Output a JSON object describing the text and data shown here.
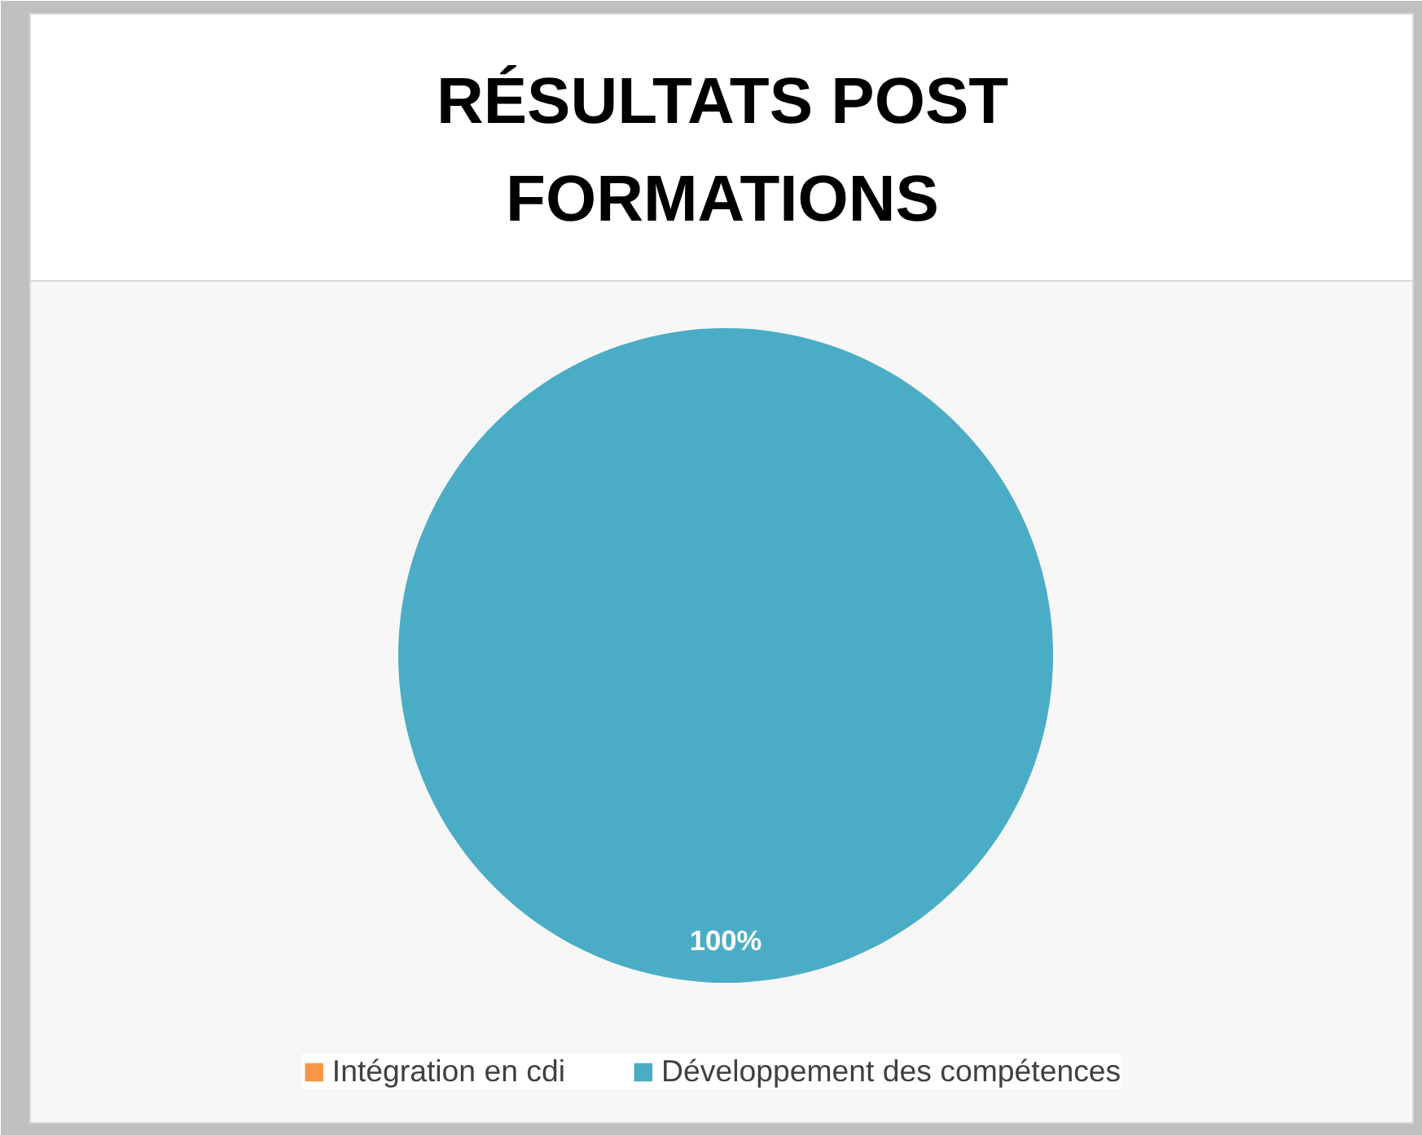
{
  "chart_data": {
    "type": "pie",
    "title": "RÉSULTATS POST FORMATIONS",
    "categories": [
      "Intégration en cdi",
      "Développement des compétences"
    ],
    "values": [
      0,
      100
    ],
    "colors": [
      "#f79646",
      "#4bacc6"
    ],
    "value_labels": [
      null,
      "100%"
    ],
    "legend": "bottom"
  }
}
